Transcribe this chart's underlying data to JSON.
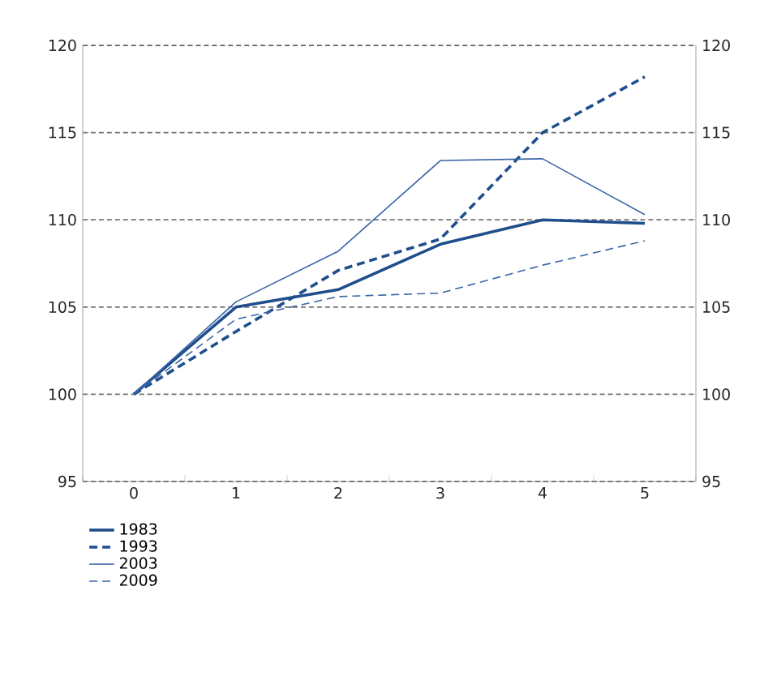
{
  "chart_data": {
    "type": "line",
    "categories": [
      "0",
      "1",
      "2",
      "3",
      "4",
      "5"
    ],
    "series": [
      {
        "name": "1983",
        "color": "#1f4e8c",
        "line_style": "solid",
        "values": [
          100,
          105.0,
          106.0,
          108.6,
          110.0,
          109.8
        ]
      },
      {
        "name": "1993",
        "color": "#1f4e8c",
        "line_style": "dashed",
        "values": [
          100,
          103.6,
          107.1,
          108.9,
          115.0,
          118.2
        ]
      },
      {
        "name": "2003",
        "color": "#3a64a8",
        "line_style": "solid",
        "values": [
          100,
          105.3,
          108.2,
          113.4,
          113.5,
          110.3
        ]
      },
      {
        "name": "2009",
        "color": "#3a64a8",
        "line_style": "dashed",
        "values": [
          100,
          104.3,
          105.6,
          105.8,
          107.4,
          108.8
        ]
      }
    ],
    "ylim": [
      95,
      120
    ],
    "yticks": [
      95,
      100,
      105,
      110,
      115,
      120
    ],
    "y2lim": [
      95,
      120
    ],
    "y2ticks": [
      95,
      100,
      105,
      110,
      115,
      120
    ],
    "grid": "y",
    "legend": "bottom left",
    "marker": "none"
  }
}
